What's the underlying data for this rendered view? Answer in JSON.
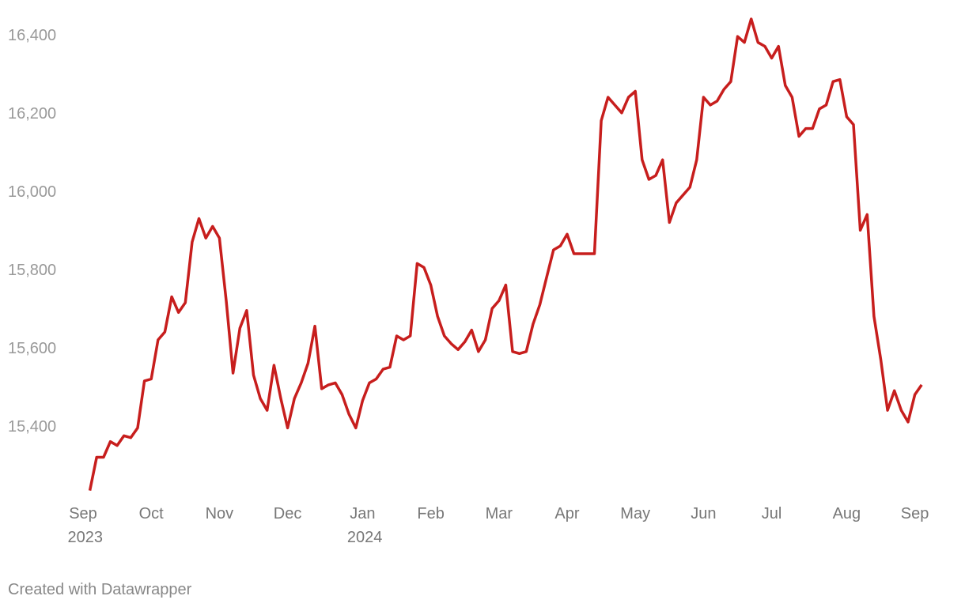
{
  "chart_data": {
    "type": "line",
    "categories": [
      "Sep 2023",
      null,
      null,
      null,
      null,
      null,
      null,
      null,
      null,
      null,
      "Oct",
      null,
      null,
      null,
      null,
      null,
      null,
      null,
      null,
      null,
      "Nov",
      null,
      null,
      null,
      null,
      null,
      null,
      null,
      null,
      null,
      "Dec",
      null,
      null,
      null,
      null,
      null,
      null,
      null,
      null,
      null,
      null,
      "Jan 2024",
      null,
      null,
      null,
      null,
      null,
      null,
      null,
      null,
      null,
      "Feb",
      null,
      null,
      null,
      null,
      null,
      null,
      null,
      null,
      null,
      "Mar",
      null,
      null,
      null,
      null,
      null,
      null,
      null,
      null,
      null,
      "Apr",
      null,
      null,
      null,
      null,
      null,
      null,
      null,
      null,
      null,
      "May",
      null,
      null,
      null,
      null,
      null,
      null,
      null,
      null,
      null,
      "Jun",
      null,
      null,
      null,
      null,
      null,
      null,
      null,
      null,
      null,
      "Jul",
      null,
      null,
      null,
      null,
      null,
      null,
      null,
      null,
      null,
      null,
      "Aug",
      null,
      null,
      null,
      null,
      null,
      null,
      null,
      null,
      null,
      "Sep",
      null
    ],
    "series": [
      {
        "color": "#c71e1d",
        "values": [
          null,
          15235,
          15320,
          15320,
          15360,
          15350,
          15375,
          15370,
          15395,
          15515,
          15520,
          15620,
          15640,
          15730,
          15690,
          15715,
          15870,
          15930,
          15880,
          15910,
          15880,
          15720,
          15535,
          15650,
          15695,
          15530,
          15470,
          15440,
          15555,
          15470,
          15395,
          15470,
          15510,
          15560,
          15655,
          15495,
          15505,
          15510,
          15480,
          15430,
          15395,
          15465,
          15510,
          15520,
          15545,
          15550,
          15630,
          15620,
          15630,
          15815,
          15805,
          15760,
          15680,
          15630,
          15610,
          15595,
          15615,
          15645,
          15590,
          15620,
          15700,
          15720,
          15760,
          15590,
          15585,
          15590,
          15660,
          15710,
          15780,
          15850,
          15860,
          15890,
          15840,
          15840,
          15840,
          15840,
          16180,
          16240,
          16220,
          16200,
          16240,
          16255,
          16080,
          16030,
          16040,
          16080,
          15920,
          15970,
          15990,
          16010,
          16080,
          16240,
          16220,
          16230,
          16260,
          16280,
          16395,
          16380,
          16440,
          16380,
          16370,
          16340,
          16370,
          16270,
          16240,
          16140,
          16160,
          16160,
          16210,
          16220,
          16280,
          16285,
          16190,
          16170,
          15900,
          15940,
          15680,
          15570,
          15440,
          15490,
          15440,
          15410,
          15480,
          15505
        ]
      }
    ],
    "ylim": [
      15220,
      16450
    ],
    "yticks": [
      {
        "value": 15400,
        "label": "15,400"
      },
      {
        "value": 15600,
        "label": "15,600"
      },
      {
        "value": 15800,
        "label": "15,800"
      },
      {
        "value": 16000,
        "label": "16,000"
      },
      {
        "value": 16200,
        "label": "16,200"
      },
      {
        "value": 16400,
        "label": "16,400"
      }
    ],
    "credit": "Created with Datawrapper"
  }
}
